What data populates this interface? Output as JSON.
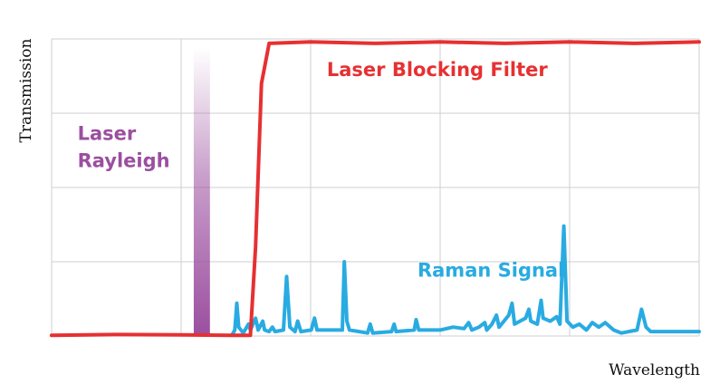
{
  "chart_data": {
    "type": "line",
    "title": "",
    "xlabel": "Wavelength",
    "ylabel": "Transmission",
    "xlim": [
      0,
      100
    ],
    "ylim": [
      0,
      1
    ],
    "grid": true,
    "series": [
      {
        "name": "Laser Blocking Filter",
        "color": "#e63032",
        "points": [
          [
            0,
            0.002
          ],
          [
            10,
            0.005
          ],
          [
            20,
            0.004
          ],
          [
            28,
            0.002
          ],
          [
            30.7,
            0.002
          ],
          [
            31.5,
            0.3
          ],
          [
            32.4,
            0.85
          ],
          [
            33.6,
            0.985
          ],
          [
            40,
            0.99
          ],
          [
            50,
            0.985
          ],
          [
            60,
            0.99
          ],
          [
            70,
            0.985
          ],
          [
            80,
            0.99
          ],
          [
            90,
            0.985
          ],
          [
            100,
            0.99
          ]
        ]
      },
      {
        "name": "Raman Signal",
        "color": "#29abe2",
        "points": [
          [
            27.9,
            0.005
          ],
          [
            28.3,
            0.02
          ],
          [
            28.6,
            0.11
          ],
          [
            28.9,
            0.03
          ],
          [
            29.6,
            0.01
          ],
          [
            30.4,
            0.04
          ],
          [
            30.7,
            0.02
          ],
          [
            31.5,
            0.06
          ],
          [
            31.9,
            0.02
          ],
          [
            32.6,
            0.05
          ],
          [
            32.9,
            0.02
          ],
          [
            33.6,
            0.015
          ],
          [
            34.1,
            0.03
          ],
          [
            34.5,
            0.015
          ],
          [
            35.8,
            0.02
          ],
          [
            36.3,
            0.2
          ],
          [
            36.8,
            0.03
          ],
          [
            37.6,
            0.015
          ],
          [
            38.0,
            0.05
          ],
          [
            38.5,
            0.015
          ],
          [
            40.1,
            0.02
          ],
          [
            40.6,
            0.06
          ],
          [
            41.0,
            0.02
          ],
          [
            44.9,
            0.02
          ],
          [
            45.2,
            0.25
          ],
          [
            45.6,
            0.05
          ],
          [
            46.0,
            0.02
          ],
          [
            48.8,
            0.01
          ],
          [
            49.2,
            0.04
          ],
          [
            49.6,
            0.01
          ],
          [
            52.5,
            0.015
          ],
          [
            52.9,
            0.04
          ],
          [
            53.2,
            0.015
          ],
          [
            56.0,
            0.02
          ],
          [
            56.3,
            0.055
          ],
          [
            56.7,
            0.02
          ],
          [
            60.0,
            0.02
          ],
          [
            62.0,
            0.03
          ],
          [
            63.7,
            0.025
          ],
          [
            64.4,
            0.045
          ],
          [
            64.9,
            0.02
          ],
          [
            66.0,
            0.03
          ],
          [
            66.9,
            0.045
          ],
          [
            67.2,
            0.02
          ],
          [
            68.0,
            0.04
          ],
          [
            68.7,
            0.07
          ],
          [
            69.1,
            0.03
          ],
          [
            70.6,
            0.07
          ],
          [
            71.1,
            0.11
          ],
          [
            71.5,
            0.04
          ],
          [
            73.2,
            0.06
          ],
          [
            73.7,
            0.09
          ],
          [
            74.0,
            0.05
          ],
          [
            75.0,
            0.04
          ],
          [
            75.6,
            0.12
          ],
          [
            75.9,
            0.06
          ],
          [
            77.0,
            0.05
          ],
          [
            78.0,
            0.065
          ],
          [
            78.5,
            0.04
          ],
          [
            79.1,
            0.37
          ],
          [
            79.6,
            0.05
          ],
          [
            80.5,
            0.03
          ],
          [
            81.5,
            0.04
          ],
          [
            82.6,
            0.02
          ],
          [
            83.5,
            0.045
          ],
          [
            84.5,
            0.03
          ],
          [
            85.5,
            0.045
          ],
          [
            86.8,
            0.02
          ],
          [
            88.0,
            0.01
          ],
          [
            90.4,
            0.02
          ],
          [
            91.1,
            0.09
          ],
          [
            91.8,
            0.03
          ],
          [
            92.5,
            0.015
          ],
          [
            95.0,
            0.015
          ],
          [
            98.0,
            0.015
          ],
          [
            100,
            0.015
          ]
        ]
      }
    ],
    "excitation_band": {
      "x_center": 23.2,
      "width": 2.5,
      "level": 0.97,
      "color": "#9b4f9f"
    },
    "annotations": [
      {
        "lines": [
          "Laser Blocking Filter"
        ],
        "color": "#e63032",
        "x": 42.5,
        "y": 0.875
      },
      {
        "lines": [
          "Laser",
          "Rayleigh"
        ],
        "color": "#9b4f9f",
        "x": 4.0,
        "y": 0.66
      },
      {
        "lines": [
          "Raman Signal"
        ],
        "color": "#29abe2",
        "x": 56.5,
        "y": 0.2
      }
    ]
  }
}
